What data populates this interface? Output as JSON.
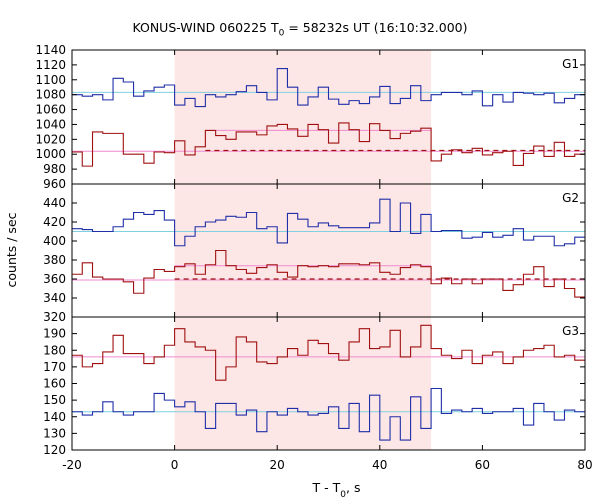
{
  "title": {
    "prefix": "KONUS-WIND 060225 T",
    "sub": "0",
    "suffix": " = 58232s UT (16:10:32.000)"
  },
  "colors": {
    "shade": "#fde6e6",
    "blue": "#1f2fa8",
    "red": "#a01010",
    "bg_blue": "#7fd0e0",
    "bg_red": "#f08ad0",
    "axis": "#000000"
  },
  "chart_data": {
    "type": "line",
    "x_axis": {
      "label_main": "T - T",
      "label_sub": "0",
      "label_tail": ", s",
      "range": [
        -20,
        80
      ],
      "ticks": [
        -20,
        0,
        20,
        40,
        60,
        80
      ]
    },
    "y_label": "counts / sec",
    "shaded_interval": [
      0,
      50
    ],
    "bin_edges": [
      -20,
      -18,
      -16,
      -14,
      -12,
      -10,
      -8,
      -6,
      -4,
      -2,
      0,
      2,
      4,
      6,
      8,
      10,
      12,
      14,
      16,
      18,
      20,
      22,
      24,
      26,
      28,
      30,
      32,
      34,
      36,
      38,
      40,
      42,
      44,
      46,
      48,
      50,
      52,
      54,
      56,
      58,
      60,
      62,
      64,
      66,
      68,
      70,
      72,
      74,
      76,
      78,
      80
    ],
    "panels": [
      {
        "name": "G1",
        "ylim": [
          960,
          1140
        ],
        "yticks": [
          960,
          980,
          1000,
          1020,
          1040,
          1060,
          1080,
          1100,
          1120,
          1140
        ],
        "series": [
          {
            "color": "blue",
            "values": [
              1080,
              1078,
              1080,
              1073,
              1102,
              1097,
              1078,
              1085,
              1090,
              1093,
              1066,
              1075,
              1064,
              1080,
              1077,
              1080,
              1084,
              1092,
              1083,
              1073,
              1115,
              1090,
              1066,
              1077,
              1090,
              1074,
              1067,
              1072,
              1068,
              1077,
              1091,
              1068,
              1075,
              1092,
              1072,
              1080,
              1083,
              1083,
              1080,
              1085,
              1065,
              1080,
              1070,
              1083,
              1082,
              1080,
              1082,
              1069,
              1075,
              1080
            ]
          },
          {
            "color": "red",
            "values": [
              1003,
              984,
              1030,
              1028,
              1028,
              1000,
              1000,
              988,
              1003,
              1002,
              1018,
              999,
              1010,
              1032,
              1025,
              1020,
              1030,
              1030,
              1026,
              1038,
              1040,
              1034,
              1024,
              1040,
              1033,
              1015,
              1042,
              1033,
              1017,
              1041,
              1032,
              1021,
              1028,
              1031,
              1035,
              991,
              1000,
              1006,
              1002,
              1008,
              999,
              1002,
              1004,
              985,
              1001,
              1011,
              997,
              1016,
              997,
              1000
            ]
          }
        ],
        "background_lines": [
          {
            "color": "bg_blue",
            "value": 1083,
            "dashed": false,
            "start": -20,
            "end": 80
          },
          {
            "color": "bg_red",
            "value": 1004,
            "dashed": false,
            "start": -20,
            "end": 80
          },
          {
            "color": "red",
            "value": 1005,
            "dashed": true,
            "start": 6,
            "end": 80
          },
          {
            "color": "bg_red",
            "value": 1032,
            "dashed": false,
            "start": 6,
            "end": 50
          }
        ]
      },
      {
        "name": "G2",
        "ylim": [
          320,
          460
        ],
        "yticks": [
          320,
          340,
          360,
          380,
          400,
          420,
          440
        ],
        "series": [
          {
            "color": "blue",
            "values": [
              413,
              412,
              410,
              410,
              415,
              423,
              430,
              428,
              432,
              422,
              395,
              405,
              415,
              420,
              422,
              426,
              425,
              430,
              413,
              415,
              398,
              429,
              423,
              415,
              419,
              416,
              414,
              414,
              414,
              419,
              444,
              410,
              440,
              408,
              428,
              410,
              411,
              411,
              403,
              404,
              409,
              404,
              406,
              413,
              401,
              405,
              405,
              395,
              397,
              404
            ]
          },
          {
            "color": "red",
            "values": [
              365,
              377,
              362,
              360,
              360,
              357,
              345,
              361,
              370,
              368,
              373,
              376,
              365,
              375,
              390,
              374,
              370,
              366,
              372,
              375,
              367,
              362,
              374,
              373,
              374,
              373,
              376,
              376,
              375,
              377,
              367,
              365,
              372,
              375,
              373,
              355,
              361,
              355,
              360,
              355,
              360,
              360,
              348,
              354,
              365,
              373,
              352,
              360,
              350,
              341
            ]
          }
        ],
        "background_lines": [
          {
            "color": "bg_blue",
            "value": 410,
            "dashed": false,
            "start": -20,
            "end": 80
          },
          {
            "color": "bg_red",
            "value": 359,
            "dashed": false,
            "start": -20,
            "end": 80
          },
          {
            "color": "red",
            "value": 360,
            "dashed": true,
            "start": 0,
            "end": 80
          },
          {
            "color": "bg_red",
            "value": 374,
            "dashed": false,
            "start": 0,
            "end": 50
          }
        ]
      },
      {
        "name": "G3",
        "ylim": [
          120,
          200
        ],
        "yticks": [
          120,
          130,
          140,
          150,
          160,
          170,
          180,
          190
        ],
        "series": [
          {
            "color": "red",
            "values": [
              177,
              170,
              172,
              179,
              189,
              178,
              178,
              172,
              176,
              183,
              193,
              185,
              182,
              180,
              162,
              170,
              188,
              185,
              173,
              172,
              176,
              181,
              177,
              186,
              184,
              178,
              174,
              185,
              193,
              181,
              182,
              192,
              176,
              182,
              195,
              181,
              177,
              175,
              180,
              172,
              177,
              179,
              172,
              176,
              180,
              181,
              183,
              176,
              177,
              174
            ]
          },
          {
            "color": "blue",
            "values": [
              143,
              141,
              143,
              149,
              143,
              141,
              143,
              143,
              154,
              150,
              146,
              149,
              143,
              133,
              148,
              148,
              141,
              144,
              131,
              143,
              141,
              145,
              143,
              141,
              142,
              146,
              133,
              148,
              131,
              153,
              126,
              140,
              126,
              152,
              133,
              157,
              142,
              144,
              143,
              145,
              142,
              143,
              143,
              145,
              135,
              148,
              143,
              138,
              144,
              143
            ]
          }
        ],
        "background_lines": [
          {
            "color": "bg_blue",
            "value": 143,
            "dashed": false,
            "start": -20,
            "end": 80
          },
          {
            "color": "bg_red",
            "value": 176,
            "dashed": false,
            "start": -20,
            "end": 80
          }
        ]
      }
    ]
  }
}
